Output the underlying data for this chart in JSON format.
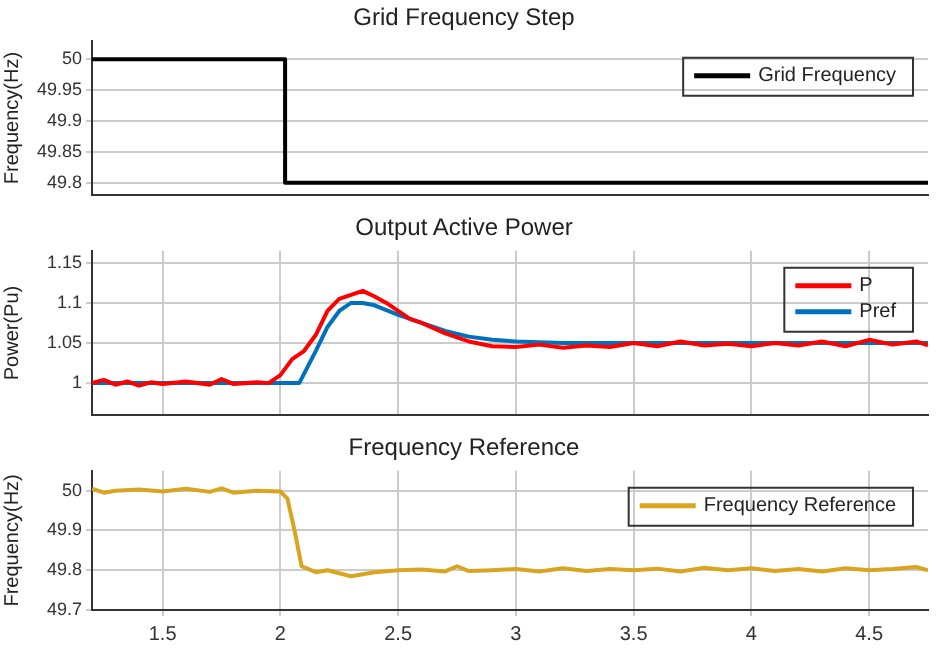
{
  "chart_data": [
    {
      "type": "step",
      "title": "Grid Frequency Step",
      "ylabel": "Frequency(Hz)",
      "xlim": [
        1.2,
        4.75
      ],
      "ylim": [
        49.78,
        50.03
      ],
      "yticks": [
        49.8,
        49.85,
        49.9,
        49.95,
        50
      ],
      "grid": "y",
      "legend": "top right",
      "tick_labels": "y",
      "series": [
        {
          "name": "Grid Frequency",
          "color": "#000000",
          "x": [
            1.2,
            2.02,
            4.75
          ],
          "values": [
            50,
            49.8,
            49.8
          ]
        }
      ]
    },
    {
      "type": "line",
      "title": "Output Active Power",
      "ylabel": "Power(Pu)",
      "xlim": [
        1.2,
        4.75
      ],
      "xticks": [
        1.5,
        2,
        2.5,
        3,
        3.5,
        4,
        4.5
      ],
      "ylim": [
        0.96,
        1.165
      ],
      "yticks": [
        1,
        1.05,
        1.1,
        1.15
      ],
      "grid": true,
      "legend": "top right",
      "tick_labels": "y",
      "series": [
        {
          "name": "P",
          "color": "#ff0000",
          "x": [
            1.2,
            1.25,
            1.3,
            1.35,
            1.4,
            1.45,
            1.5,
            1.6,
            1.7,
            1.75,
            1.8,
            1.9,
            1.95,
            2.0,
            2.05,
            2.1,
            2.15,
            2.2,
            2.25,
            2.3,
            2.35,
            2.4,
            2.45,
            2.5,
            2.55,
            2.6,
            2.7,
            2.8,
            2.9,
            3.0,
            3.1,
            3.2,
            3.3,
            3.4,
            3.5,
            3.6,
            3.7,
            3.8,
            3.9,
            4.0,
            4.1,
            4.2,
            4.3,
            4.4,
            4.5,
            4.6,
            4.7,
            4.75
          ],
          "values": [
            1.0,
            1.004,
            0.998,
            1.002,
            0.997,
            1.001,
            0.999,
            1.002,
            0.998,
            1.005,
            0.999,
            1.001,
            1.0,
            1.01,
            1.03,
            1.04,
            1.06,
            1.09,
            1.105,
            1.11,
            1.115,
            1.108,
            1.1,
            1.09,
            1.08,
            1.075,
            1.062,
            1.052,
            1.046,
            1.045,
            1.048,
            1.044,
            1.047,
            1.045,
            1.05,
            1.046,
            1.052,
            1.047,
            1.049,
            1.046,
            1.05,
            1.047,
            1.052,
            1.046,
            1.054,
            1.048,
            1.052,
            1.047
          ]
        },
        {
          "name": "Pref",
          "color": "#0072bd",
          "x": [
            1.2,
            2.08,
            2.15,
            2.2,
            2.25,
            2.3,
            2.35,
            2.4,
            2.5,
            2.6,
            2.7,
            2.8,
            2.9,
            3.0,
            3.2,
            4.75
          ],
          "values": [
            1,
            1,
            1.04,
            1.07,
            1.09,
            1.1,
            1.1,
            1.097,
            1.085,
            1.075,
            1.065,
            1.058,
            1.054,
            1.052,
            1.05,
            1.05
          ]
        }
      ]
    },
    {
      "type": "line",
      "title": "Frequency Reference",
      "ylabel": "Frequency(Hz)",
      "xlim": [
        1.2,
        4.75
      ],
      "xticks": [
        1.5,
        2,
        2.5,
        3,
        3.5,
        4,
        4.5
      ],
      "ylim": [
        49.7,
        50.05
      ],
      "yticks": [
        49.7,
        49.8,
        49.9,
        50
      ],
      "grid": true,
      "legend": "top right",
      "series": [
        {
          "name": "Frequency Reference",
          "color": "#d9a520",
          "x": [
            1.2,
            1.25,
            1.3,
            1.4,
            1.5,
            1.6,
            1.7,
            1.75,
            1.8,
            1.9,
            2.0,
            2.03,
            2.06,
            2.09,
            2.15,
            2.2,
            2.3,
            2.4,
            2.5,
            2.6,
            2.7,
            2.75,
            2.8,
            2.9,
            3.0,
            3.1,
            3.2,
            3.3,
            3.4,
            3.5,
            3.6,
            3.7,
            3.8,
            3.9,
            4.0,
            4.1,
            4.2,
            4.3,
            4.4,
            4.5,
            4.6,
            4.7,
            4.75
          ],
          "values": [
            50.005,
            49.995,
            50.0,
            50.003,
            49.998,
            50.005,
            49.997,
            50.006,
            49.995,
            50.0,
            49.998,
            49.98,
            49.9,
            49.81,
            49.795,
            49.8,
            49.785,
            49.795,
            49.8,
            49.802,
            49.797,
            49.81,
            49.798,
            49.8,
            49.803,
            49.797,
            49.805,
            49.798,
            49.803,
            49.8,
            49.804,
            49.797,
            49.806,
            49.8,
            49.805,
            49.798,
            49.803,
            49.797,
            49.805,
            49.8,
            49.803,
            49.808,
            49.8
          ]
        }
      ]
    }
  ]
}
